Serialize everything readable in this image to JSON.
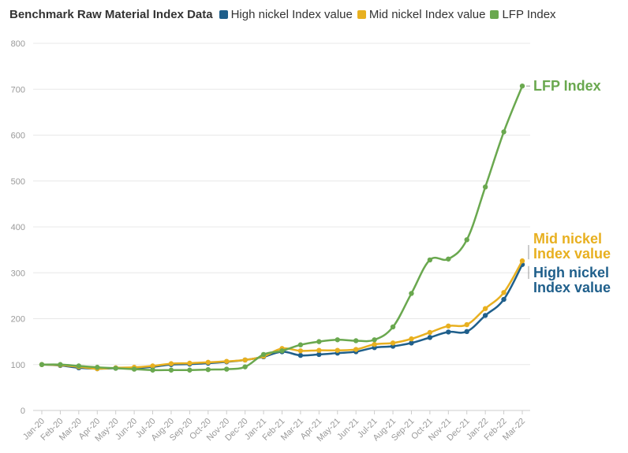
{
  "chart_data": {
    "type": "line",
    "title": "Benchmark Raw Material Index Data",
    "xlabel": "",
    "ylabel": "",
    "ylim": [
      0,
      800
    ],
    "yticks": [
      0,
      100,
      200,
      300,
      400,
      500,
      600,
      700,
      800
    ],
    "grid": true,
    "legend_placement": "top",
    "categories": [
      "Jan-20",
      "Feb-20",
      "Mar-20",
      "Apr-20",
      "May-20",
      "Jun-20",
      "Jul-20",
      "Aug-20",
      "Sep-20",
      "Oct-20",
      "Nov-20",
      "Dec-20",
      "Jan-21",
      "Feb-21",
      "Mar-21",
      "Apr-21",
      "May-21",
      "Jun-21",
      "Jul-21",
      "Aug-21",
      "Sep-21",
      "Oct-21",
      "Nov-21",
      "Dec-21",
      "Jan-22",
      "Feb-22",
      "Mar-22"
    ],
    "series": [
      {
        "name": "High nickel Index value",
        "color": "#1f5f8b",
        "end_label": [
          "High nickel",
          "Index value"
        ],
        "values": [
          100,
          98,
          93,
          91,
          92,
          92,
          95,
          100,
          101,
          103,
          106,
          110,
          117,
          128,
          120,
          122,
          125,
          128,
          137,
          140,
          147,
          159,
          171,
          172,
          207,
          242,
          318
        ]
      },
      {
        "name": "Mid nickel Index value",
        "color": "#e8b020",
        "end_label": [
          "Mid nickel",
          "Index value"
        ],
        "values": [
          100,
          99,
          95,
          91,
          93,
          94,
          97,
          102,
          103,
          105,
          107,
          110,
          118,
          135,
          130,
          131,
          131,
          133,
          144,
          147,
          156,
          170,
          184,
          187,
          222,
          257,
          326
        ]
      },
      {
        "name": "LFP Index",
        "color": "#6aa84f",
        "end_label": [
          "LFP Index"
        ],
        "values": [
          100,
          100,
          97,
          94,
          92,
          90,
          88,
          88,
          88,
          89,
          90,
          95,
          122,
          130,
          143,
          150,
          154,
          152,
          154,
          182,
          255,
          328,
          330,
          372,
          487,
          607,
          707
        ]
      }
    ]
  }
}
